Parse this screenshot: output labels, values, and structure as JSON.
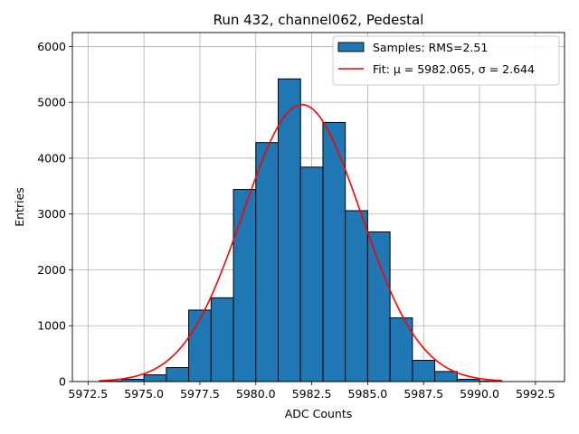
{
  "chart_data": {
    "type": "bar",
    "title": "Run 432, channel062, Pedestal",
    "xlabel": "ADC Counts",
    "ylabel": "Entries",
    "xlim": [
      5971.8,
      5993.8
    ],
    "ylim": [
      0,
      6250
    ],
    "grid": true,
    "legend_position": "top-right",
    "x_ticks": [
      {
        "value": 5972.5,
        "label": "5972.5"
      },
      {
        "value": 5975.0,
        "label": "5975.0"
      },
      {
        "value": 5977.5,
        "label": "5977.5"
      },
      {
        "value": 5980.0,
        "label": "5980.0"
      },
      {
        "value": 5982.5,
        "label": "5982.5"
      },
      {
        "value": 5985.0,
        "label": "5985.0"
      },
      {
        "value": 5987.5,
        "label": "5987.5"
      },
      {
        "value": 5990.0,
        "label": "5990.0"
      },
      {
        "value": 5992.5,
        "label": "5992.5"
      }
    ],
    "y_ticks": [
      {
        "value": 0,
        "label": "0"
      },
      {
        "value": 1000,
        "label": "1000"
      },
      {
        "value": 2000,
        "label": "2000"
      },
      {
        "value": 3000,
        "label": "3000"
      },
      {
        "value": 4000,
        "label": "4000"
      },
      {
        "value": 5000,
        "label": "5000"
      },
      {
        "value": 6000,
        "label": "6000"
      }
    ],
    "histogram": {
      "name": "Samples: RMS=2.51",
      "color": "#1f77b4",
      "edge_color": "#000000",
      "bin_edges": [
        5973,
        5974,
        5975,
        5976,
        5977,
        5978,
        5979,
        5980,
        5981,
        5982,
        5983,
        5984,
        5985,
        5986,
        5987,
        5988,
        5989,
        5990,
        5991,
        5992,
        5993
      ],
      "counts": [
        10,
        40,
        120,
        250,
        1280,
        1500,
        3440,
        4280,
        5420,
        3840,
        4640,
        3060,
        2680,
        1140,
        380,
        180,
        40,
        10,
        0,
        0
      ]
    },
    "fit": {
      "name": "Fit: μ = 5982.065, σ = 2.644",
      "color": "#ff0000",
      "mu": 5982.065,
      "sigma": 2.644,
      "amplitude": 4960,
      "x_range": [
        5973,
        5991
      ]
    }
  }
}
